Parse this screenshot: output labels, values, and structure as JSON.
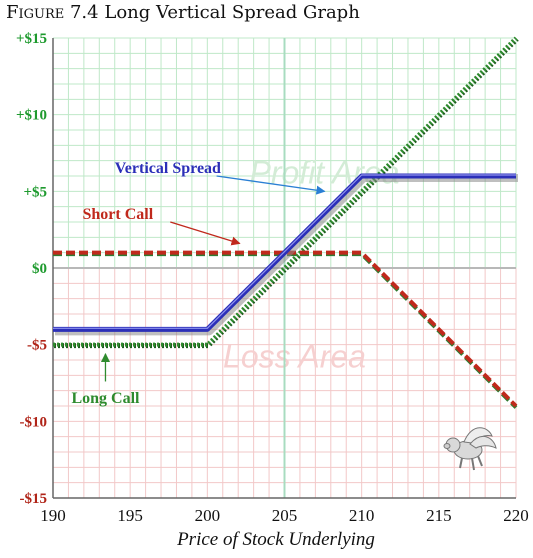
{
  "figure": {
    "prefix": "Figure",
    "number": "7.4",
    "caption": "Long Vertical Spread Graph"
  },
  "chart_data": {
    "type": "line",
    "title": "FIGURE 7.4 Long Vertical Spread Graph",
    "xlabel": "Price of Stock Underlying",
    "ylabel": "",
    "xlim": [
      190,
      220
    ],
    "ylim": [
      -15,
      15
    ],
    "x_ticks": [
      190,
      195,
      200,
      205,
      210,
      215,
      220
    ],
    "y_ticks": [
      {
        "value": 15,
        "label": "+$15"
      },
      {
        "value": 10,
        "label": "+$10"
      },
      {
        "value": 5,
        "label": "+$5"
      },
      {
        "value": 0,
        "label": "$0"
      },
      {
        "value": -5,
        "label": "-$5"
      },
      {
        "value": -10,
        "label": "-$10"
      },
      {
        "value": -15,
        "label": "-$15"
      }
    ],
    "grid": true,
    "regions": [
      {
        "label": "Profit Area",
        "y_range": [
          0,
          15
        ]
      },
      {
        "label": "Loss Area",
        "y_range": [
          -15,
          0
        ]
      }
    ],
    "series": [
      {
        "name": "Vertical Spread",
        "color": "#2b2fb8",
        "style": "solid",
        "points": [
          [
            190,
            -4
          ],
          [
            200,
            -4
          ],
          [
            210,
            6
          ],
          [
            220,
            6
          ]
        ]
      },
      {
        "name": "Short Call",
        "color": "#c0291c",
        "style": "dashed",
        "points": [
          [
            190,
            1
          ],
          [
            210,
            1
          ],
          [
            220,
            -9
          ]
        ]
      },
      {
        "name": "Long Call",
        "color": "#2e8b2e",
        "style": "dotted",
        "points": [
          [
            190,
            -5
          ],
          [
            200,
            -5
          ],
          [
            220,
            15
          ]
        ]
      }
    ]
  },
  "colors": {
    "ylabels": "#1e9a2e",
    "ylabels_negative": "#b02418",
    "grid_profit": "#bfe8c8",
    "grid_loss": "#f2c8c8",
    "profit_text": "#d3ecd6",
    "loss_text": "#f6d0d0"
  },
  "icons": [
    "flying-pig-icon"
  ]
}
